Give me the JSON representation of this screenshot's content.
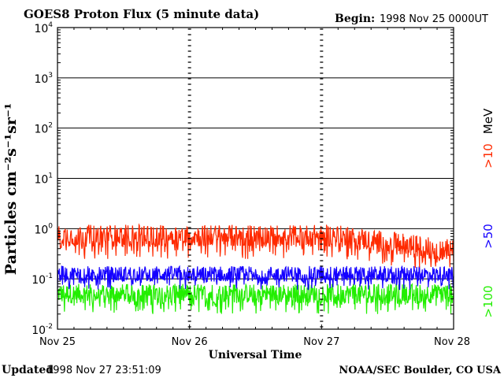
{
  "header": {
    "title": "GOES8 Proton Flux (5 minute data)",
    "begin_label": "Begin:",
    "begin_value": "1998 Nov 25 0000UT"
  },
  "footer": {
    "updated_label": "Updated",
    "updated_value": "1998 Nov 27 23:51:09",
    "credit": "NOAA/SEC Boulder, CO USA"
  },
  "colors": {
    "frame": "#000000",
    "gt10": "#ff2a00",
    "gt50": "#1400ff",
    "gt100": "#22ee00"
  },
  "chart_data": {
    "type": "line",
    "title": "GOES8 Proton Flux (5 minute data)",
    "xlabel": "Universal Time",
    "ylabel": "Particles cm⁻²s⁻¹sr⁻¹",
    "y_scale": "log",
    "ylim": [
      0.01,
      10000
    ],
    "y_ticks": [
      {
        "base": "10",
        "exp": "4"
      },
      {
        "base": "10",
        "exp": "3"
      },
      {
        "base": "10",
        "exp": "2"
      },
      {
        "base": "10",
        "exp": "1"
      },
      {
        "base": "10",
        "exp": "0"
      },
      {
        "base": "10",
        "exp": "-1"
      },
      {
        "base": "10",
        "exp": "-2"
      }
    ],
    "x_ticks": [
      "Nov 25",
      "Nov 26",
      "Nov 27",
      "Nov 28"
    ],
    "xlim": [
      "1998-11-25",
      "1998-11-28"
    ],
    "grid": true,
    "unit_label": "MeV",
    "series": [
      {
        "name": ">10",
        "color": "#ff2a00",
        "typical_range": [
          0.25,
          1.2
        ]
      },
      {
        "name": ">50",
        "color": "#1400ff",
        "typical_range": [
          0.06,
          0.18
        ]
      },
      {
        "name": ">100",
        "color": "#22ee00",
        "typical_range": [
          0.02,
          0.08
        ]
      }
    ]
  }
}
